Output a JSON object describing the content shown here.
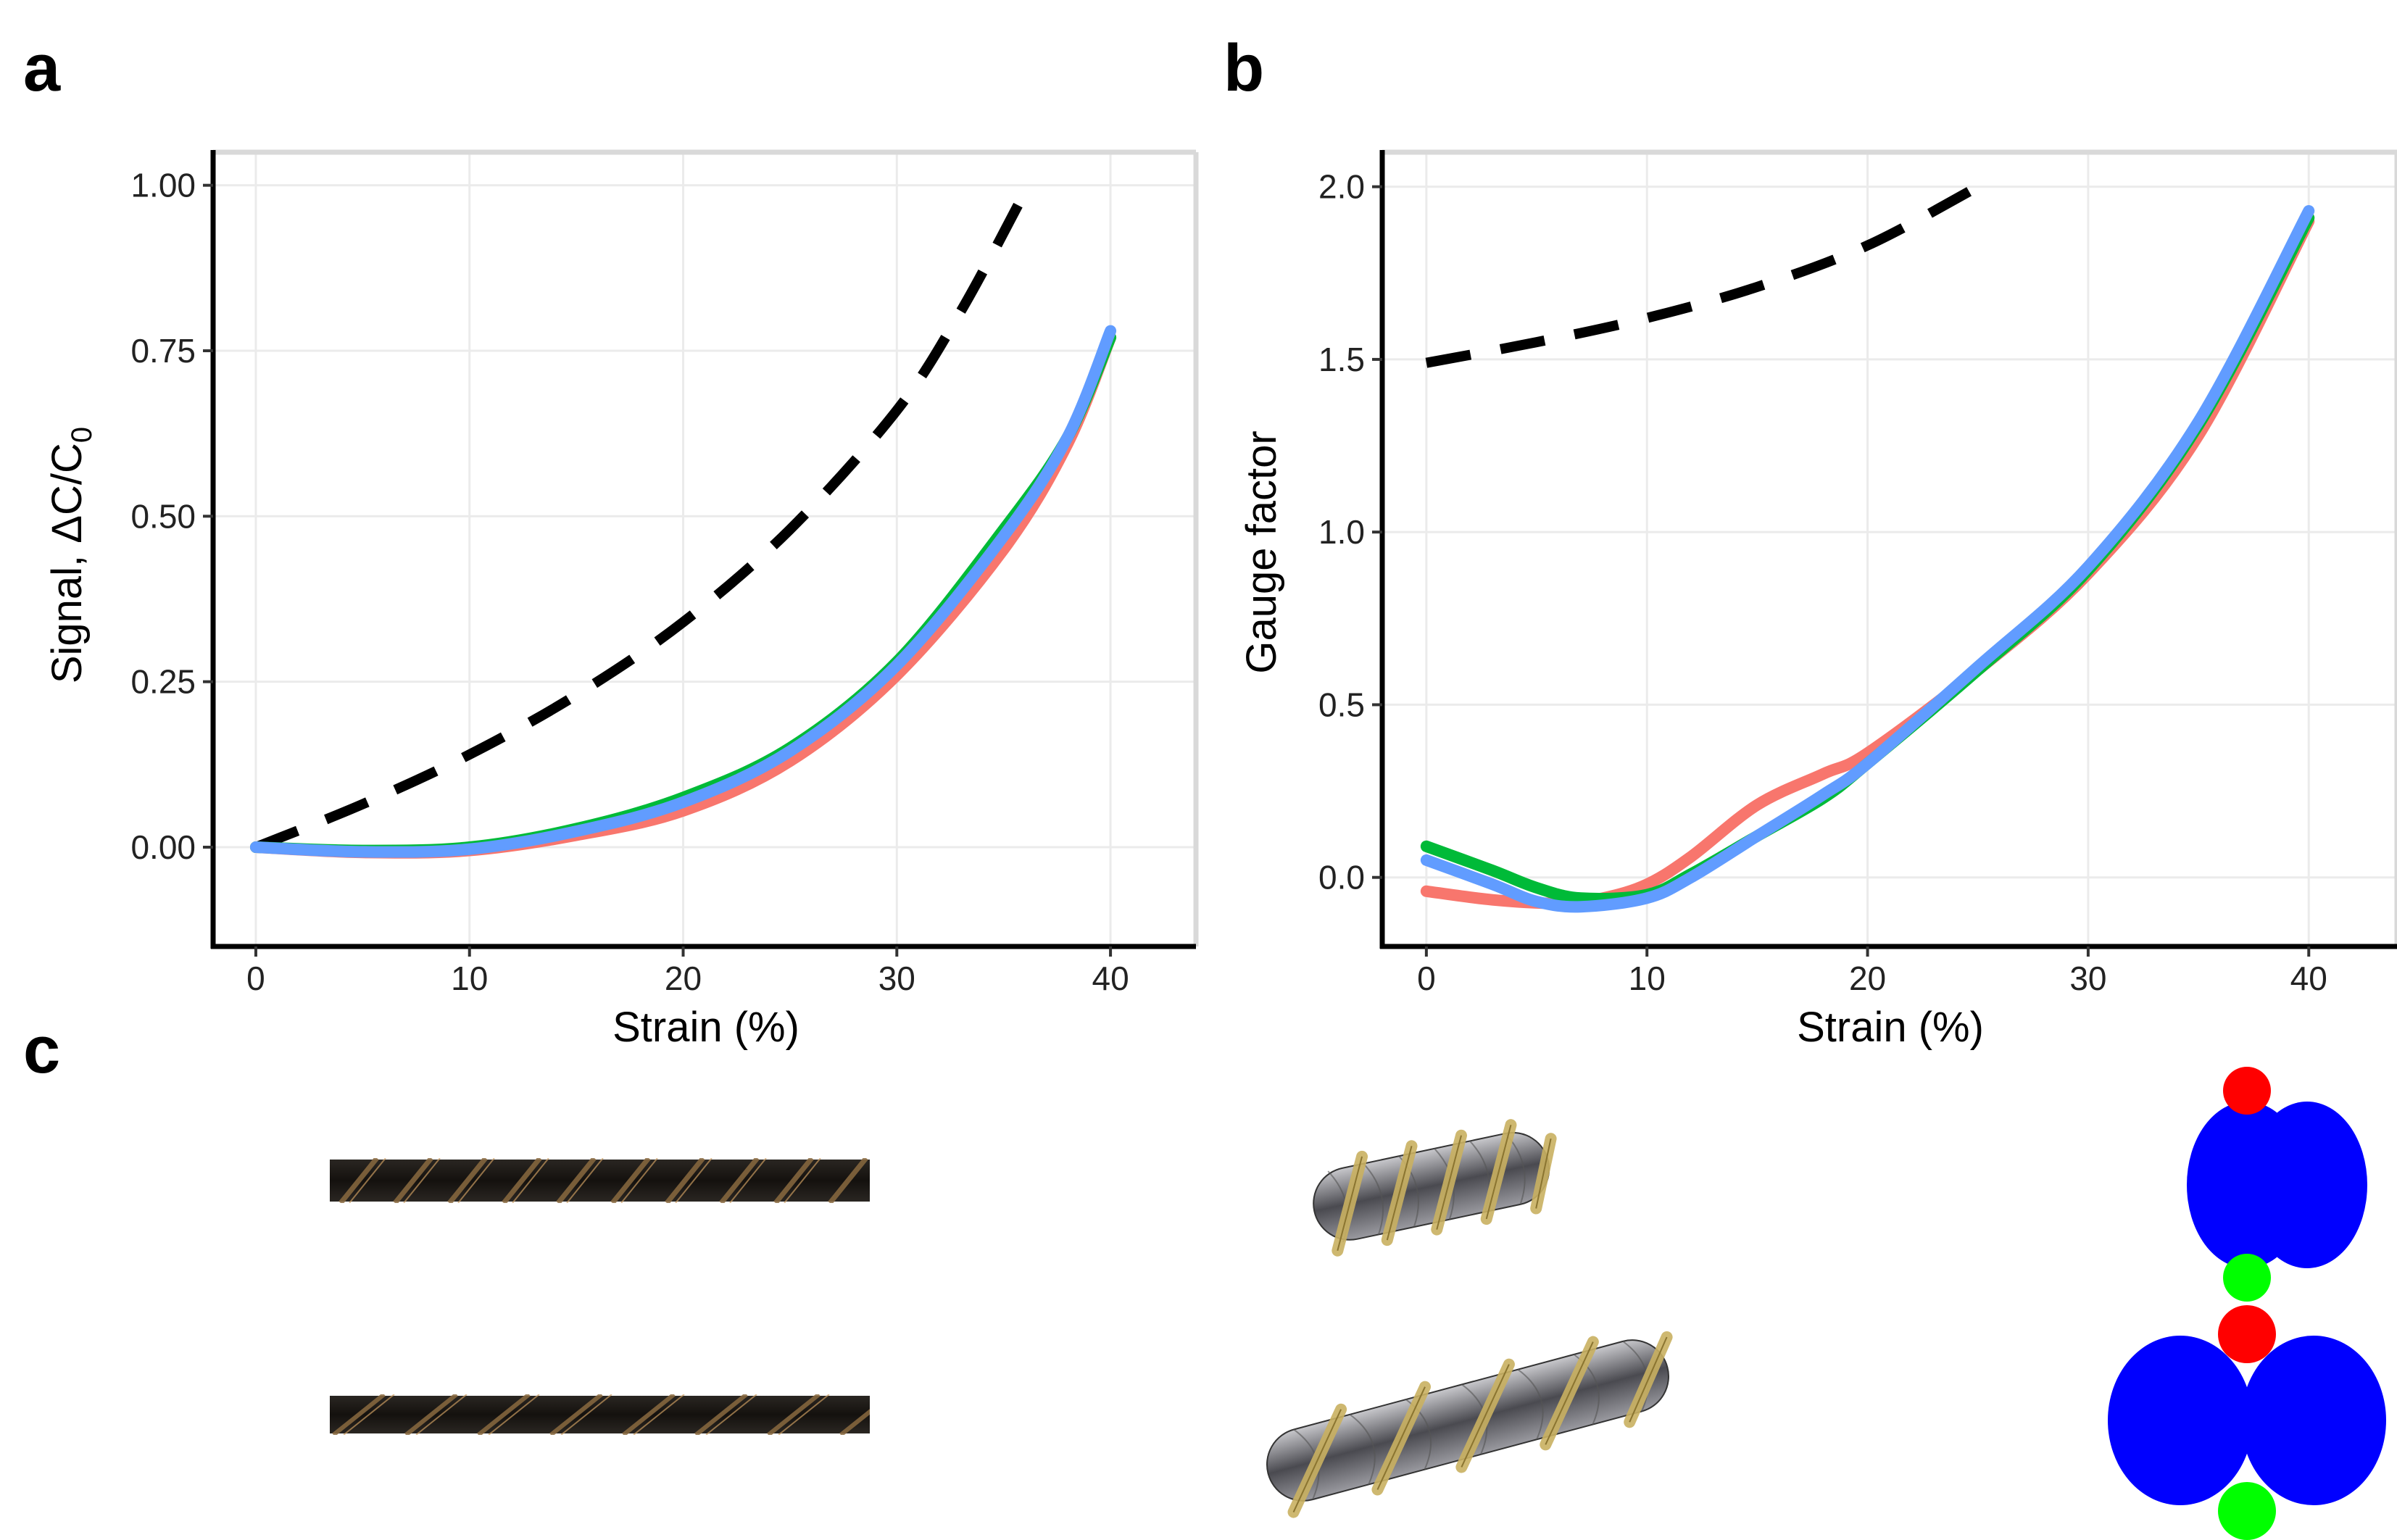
{
  "panels": {
    "a_label": "a",
    "b_label": "b",
    "c_label": "c"
  },
  "colors": {
    "red": "#F8766D",
    "green": "#00BA38",
    "blue": "#619CFF",
    "model": "#000000",
    "grid": "#EBEBEB",
    "frame": "#D9D9D9"
  },
  "chart_data": [
    {
      "type": "line",
      "panel": "a",
      "xlabel": "Strain (%)",
      "ylabel_prefix": "Signal, ΔC/C",
      "ylabel_sub": "0",
      "xlim": [
        -2,
        44
      ],
      "ylim": [
        -0.15,
        1.05
      ],
      "x_ticks": [
        0,
        10,
        20,
        30,
        40
      ],
      "x_tick_labels": [
        "0",
        "10",
        "20",
        "30",
        "40"
      ],
      "y_ticks": [
        0,
        0.25,
        0.5,
        0.75,
        1.0
      ],
      "y_tick_labels": [
        "0.00",
        "0.25",
        "0.50",
        "0.75",
        "1.00"
      ],
      "grid": true,
      "series": [
        {
          "color": "#000000",
          "dashed": true,
          "x": [
            0,
            5,
            10,
            15,
            20,
            25,
            30,
            33,
            36
          ],
          "y": [
            0,
            0.065,
            0.14,
            0.23,
            0.34,
            0.48,
            0.66,
            0.81,
            0.99
          ]
        },
        {
          "color": "#F8766D",
          "x": [
            0,
            5,
            10,
            15,
            20,
            25,
            30,
            35,
            38,
            40
          ],
          "y": [
            0,
            -0.008,
            -0.005,
            0.018,
            0.055,
            0.13,
            0.26,
            0.45,
            0.61,
            0.77
          ]
        },
        {
          "color": "#00BA38",
          "x": [
            0,
            5,
            10,
            15,
            20,
            25,
            30,
            35,
            38,
            40
          ],
          "y": [
            0,
            -0.005,
            0,
            0.028,
            0.075,
            0.15,
            0.28,
            0.48,
            0.62,
            0.77
          ]
        },
        {
          "color": "#619CFF",
          "x": [
            0,
            5,
            10,
            15,
            20,
            25,
            30,
            35,
            38,
            40
          ],
          "y": [
            0,
            -0.007,
            -0.003,
            0.024,
            0.068,
            0.145,
            0.275,
            0.47,
            0.62,
            0.78
          ]
        }
      ]
    },
    {
      "type": "line",
      "panel": "b",
      "xlabel": "Strain (%)",
      "ylabel": "Gauge factor",
      "xlim": [
        -2,
        44
      ],
      "ylim": [
        -0.2,
        2.1
      ],
      "x_ticks": [
        0,
        10,
        20,
        30,
        40
      ],
      "x_tick_labels": [
        "0",
        "10",
        "20",
        "30",
        "40"
      ],
      "y_ticks": [
        0,
        0.5,
        1.0,
        1.5,
        2.0
      ],
      "y_tick_labels": [
        "0.0",
        "0.5",
        "1.0",
        "1.5",
        "2.0"
      ],
      "grid": true,
      "series": [
        {
          "color": "#000000",
          "dashed": true,
          "x": [
            0,
            5,
            10,
            15,
            20,
            25
          ],
          "y": [
            1.49,
            1.55,
            1.62,
            1.71,
            1.83,
            2.0
          ]
        },
        {
          "color": "#F8766D",
          "x": [
            0,
            3,
            6,
            8,
            10,
            12,
            15,
            18,
            20,
            25,
            30,
            35,
            40
          ],
          "y": [
            -0.04,
            -0.065,
            -0.075,
            -0.06,
            -0.02,
            0.06,
            0.21,
            0.3,
            0.36,
            0.6,
            0.88,
            1.28,
            1.9
          ]
        },
        {
          "color": "#00BA38",
          "x": [
            0,
            3,
            5,
            7,
            10,
            12,
            15,
            18,
            20,
            25,
            30,
            35,
            40
          ],
          "y": [
            0.09,
            0.02,
            -0.03,
            -0.06,
            -0.05,
            0.01,
            0.12,
            0.23,
            0.33,
            0.6,
            0.89,
            1.31,
            1.91
          ]
        },
        {
          "color": "#619CFF",
          "x": [
            0,
            3,
            5,
            7,
            10,
            12,
            15,
            18,
            20,
            25,
            30,
            35,
            40
          ],
          "y": [
            0.05,
            -0.02,
            -0.07,
            -0.085,
            -0.06,
            0.0,
            0.12,
            0.24,
            0.33,
            0.61,
            0.9,
            1.32,
            1.93
          ]
        }
      ]
    }
  ],
  "images": {
    "photos": [
      "twisted-fiber-relaxed",
      "twisted-fiber-stretched"
    ],
    "models": [
      "helix-model-relaxed",
      "helix-model-stretched"
    ],
    "cross_sections": [
      "cross-section-relaxed",
      "cross-section-stretched"
    ]
  }
}
